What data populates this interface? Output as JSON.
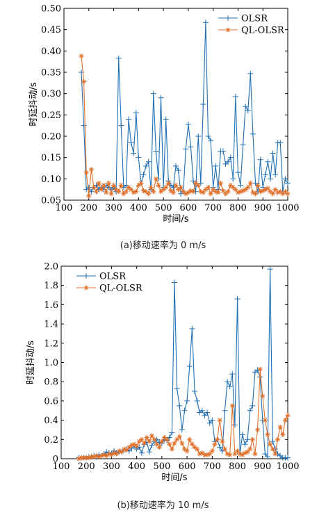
{
  "chart_data": [
    {
      "type": "line",
      "xlabel": "时间/s",
      "ylabel": "时延抖动/s",
      "xlim": [
        100,
        1000
      ],
      "ylim": [
        0.05,
        0.5
      ],
      "xticks": [
        100,
        200,
        300,
        400,
        500,
        600,
        700,
        800,
        900,
        1000
      ],
      "yticks": [
        0.05,
        0.1,
        0.15,
        0.2,
        0.25,
        0.3,
        0.35,
        0.4,
        0.45,
        0.5
      ],
      "xtick_labels": [
        "100",
        "200",
        "300",
        "400",
        "500",
        "600",
        "700",
        "800",
        "900",
        "1000"
      ],
      "ytick_labels": [
        "0.05",
        "0.10",
        "0.15",
        "0.20",
        "0.25",
        "0.30",
        "0.35",
        "0.40",
        "0.45",
        "0.50"
      ],
      "legend_position": "top-right",
      "series": [
        {
          "name": "OLSR",
          "color": "#1f6fb5",
          "marker": "plus",
          "x": [
            170,
            180,
            190,
            200,
            210,
            220,
            230,
            240,
            250,
            260,
            270,
            280,
            290,
            300,
            310,
            320,
            330,
            340,
            350,
            360,
            370,
            380,
            390,
            400,
            410,
            420,
            430,
            440,
            450,
            460,
            470,
            480,
            490,
            500,
            510,
            520,
            530,
            540,
            550,
            560,
            570,
            580,
            590,
            600,
            610,
            620,
            630,
            640,
            650,
            660,
            670,
            680,
            690,
            700,
            710,
            720,
            730,
            740,
            750,
            760,
            770,
            780,
            790,
            800,
            810,
            820,
            830,
            840,
            850,
            860,
            870,
            880,
            890,
            900,
            910,
            920,
            930,
            940,
            950,
            960,
            970,
            980,
            990,
            1000
          ],
          "y": [
            0.35,
            0.225,
            0.075,
            0.08,
            0.07,
            0.08,
            0.085,
            0.075,
            0.08,
            0.075,
            0.085,
            0.08,
            0.075,
            0.08,
            0.07,
            0.383,
            0.225,
            0.08,
            0.085,
            0.24,
            0.185,
            0.16,
            0.255,
            0.15,
            0.09,
            0.11,
            0.13,
            0.14,
            0.075,
            0.3,
            0.165,
            0.1,
            0.29,
            0.08,
            0.24,
            0.095,
            0.085,
            0.08,
            0.13,
            0.12,
            0.065,
            0.07,
            0.17,
            0.228,
            0.175,
            0.095,
            0.07,
            0.2,
            0.09,
            0.275,
            0.467,
            0.2,
            0.19,
            0.08,
            0.13,
            0.075,
            0.165,
            0.165,
            0.135,
            0.14,
            0.15,
            0.1,
            0.293,
            0.115,
            0.085,
            0.18,
            0.27,
            0.26,
            0.347,
            0.205,
            0.09,
            0.07,
            0.145,
            0.08,
            0.11,
            0.14,
            0.1,
            0.16,
            0.11,
            0.185,
            0.185,
            0.07,
            0.1,
            0.09
          ]
        },
        {
          "name": "QL-OLSR",
          "color": "#e0702a",
          "marker": "star",
          "x": [
            170,
            180,
            190,
            200,
            210,
            220,
            230,
            240,
            250,
            260,
            270,
            280,
            290,
            300,
            310,
            320,
            330,
            340,
            350,
            360,
            370,
            380,
            390,
            400,
            410,
            420,
            430,
            440,
            450,
            460,
            470,
            480,
            490,
            500,
            510,
            520,
            530,
            540,
            550,
            560,
            570,
            580,
            590,
            600,
            610,
            620,
            630,
            640,
            650,
            660,
            670,
            680,
            690,
            700,
            710,
            720,
            730,
            740,
            750,
            760,
            770,
            780,
            790,
            800,
            810,
            820,
            830,
            840,
            850,
            860,
            870,
            880,
            890,
            900,
            910,
            920,
            930,
            940,
            950,
            960,
            970,
            980,
            990,
            1000
          ],
          "y": [
            0.388,
            0.328,
            0.115,
            0.06,
            0.122,
            0.08,
            0.07,
            0.09,
            0.075,
            0.085,
            0.068,
            0.09,
            0.065,
            0.085,
            0.075,
            0.07,
            0.085,
            0.065,
            0.07,
            0.08,
            0.075,
            0.068,
            0.07,
            0.085,
            0.09,
            0.072,
            0.07,
            0.065,
            0.08,
            0.07,
            0.1,
            0.085,
            0.07,
            0.075,
            0.08,
            0.09,
            0.072,
            0.068,
            0.085,
            0.075,
            0.08,
            0.07,
            0.065,
            0.068,
            0.072,
            0.07,
            0.09,
            0.085,
            0.07,
            0.068,
            0.075,
            0.08,
            0.065,
            0.075,
            0.07,
            0.068,
            0.09,
            0.072,
            0.065,
            0.07,
            0.085,
            0.08,
            0.075,
            0.068,
            0.07,
            0.072,
            0.075,
            0.08,
            0.09,
            0.068,
            0.065,
            0.085,
            0.07,
            0.072,
            0.075,
            0.078,
            0.07,
            0.065,
            0.075,
            0.068,
            0.07,
            0.065,
            0.07,
            0.065
          ]
        }
      ]
    },
    {
      "type": "line",
      "xlabel": "时间/s",
      "ylabel": "时延抖动/s",
      "xlim": [
        100,
        1000
      ],
      "ylim": [
        0,
        2.0
      ],
      "xticks": [
        100,
        200,
        300,
        400,
        500,
        600,
        700,
        800,
        900,
        1000
      ],
      "yticks": [
        0,
        0.2,
        0.4,
        0.6,
        0.8,
        1.0,
        1.2,
        1.4,
        1.6,
        1.8,
        2.0
      ],
      "xtick_labels": [
        "100",
        "200",
        "300",
        "400",
        "500",
        "600",
        "700",
        "800",
        "900",
        "1000"
      ],
      "ytick_labels": [
        "0",
        "0.2",
        "0.4",
        "0.6",
        "0.8",
        "1.0",
        "1.2",
        "1.4",
        "1.6",
        "1.8",
        "2.0"
      ],
      "legend_position": "top-left",
      "series": [
        {
          "name": "OLSR",
          "color": "#1f6fb5",
          "marker": "plus",
          "x": [
            170,
            180,
            190,
            200,
            210,
            220,
            230,
            240,
            250,
            260,
            270,
            280,
            290,
            300,
            310,
            320,
            330,
            340,
            350,
            360,
            370,
            380,
            390,
            400,
            410,
            420,
            430,
            440,
            450,
            460,
            470,
            480,
            490,
            500,
            510,
            520,
            530,
            540,
            550,
            560,
            570,
            580,
            590,
            600,
            610,
            620,
            630,
            640,
            650,
            660,
            670,
            680,
            690,
            700,
            710,
            720,
            730,
            740,
            750,
            760,
            770,
            780,
            790,
            800,
            810,
            820,
            830,
            840,
            850,
            860,
            870,
            880,
            890,
            900,
            910,
            920,
            930,
            940,
            950,
            960,
            970,
            980,
            990,
            1000
          ],
          "y": [
            0.01,
            0.01,
            0.01,
            0.01,
            0.02,
            0.02,
            0.03,
            0.02,
            0.04,
            0.03,
            0.05,
            0.07,
            0.06,
            0.05,
            0.08,
            0.06,
            0.07,
            0.07,
            0.09,
            0.1,
            0.08,
            0.11,
            0.13,
            0.1,
            0.12,
            0.06,
            0.15,
            0.17,
            0.07,
            0.14,
            0.18,
            0.2,
            0.17,
            0.16,
            0.2,
            0.19,
            0.22,
            0.27,
            1.83,
            0.73,
            0.55,
            0.3,
            0.5,
            0.6,
            0.96,
            1.35,
            0.7,
            0.6,
            0.48,
            0.5,
            0.45,
            0.48,
            0.37,
            0.4,
            0.18,
            0.2,
            0.12,
            0.08,
            0.5,
            0.8,
            0.75,
            0.88,
            0.35,
            1.66,
            0.05,
            0.25,
            0.15,
            0.2,
            0.5,
            0.55,
            0.9,
            0.92,
            0.85,
            0.4,
            0.05,
            0.02,
            1.97,
            0.18,
            0.1,
            0.05,
            0.03,
            0.01,
            0.01,
            0.01
          ]
        },
        {
          "name": "QL-OLSR",
          "color": "#e0702a",
          "marker": "star",
          "x": [
            170,
            180,
            190,
            200,
            210,
            220,
            230,
            240,
            250,
            260,
            270,
            280,
            290,
            300,
            310,
            320,
            330,
            340,
            350,
            360,
            370,
            380,
            390,
            400,
            410,
            420,
            430,
            440,
            450,
            460,
            470,
            480,
            490,
            500,
            510,
            520,
            530,
            540,
            550,
            560,
            570,
            580,
            590,
            600,
            610,
            620,
            630,
            640,
            650,
            660,
            670,
            680,
            690,
            700,
            710,
            720,
            730,
            740,
            750,
            760,
            770,
            780,
            790,
            800,
            810,
            820,
            830,
            840,
            850,
            860,
            870,
            880,
            890,
            900,
            910,
            920,
            930,
            940,
            950,
            960,
            970,
            980,
            990,
            1000
          ],
          "y": [
            0.0,
            0.01,
            0.01,
            0.01,
            0.01,
            0.02,
            0.02,
            0.03,
            0.02,
            0.03,
            0.04,
            0.03,
            0.05,
            0.04,
            0.06,
            0.05,
            0.08,
            0.07,
            0.1,
            0.09,
            0.12,
            0.14,
            0.15,
            0.13,
            0.18,
            0.2,
            0.16,
            0.22,
            0.18,
            0.24,
            0.2,
            0.15,
            0.12,
            0.18,
            0.22,
            0.2,
            0.15,
            0.1,
            0.16,
            0.2,
            0.23,
            0.16,
            0.1,
            0.08,
            0.2,
            0.15,
            0.12,
            0.1,
            0.05,
            0.06,
            0.04,
            0.04,
            0.05,
            0.08,
            0.15,
            0.2,
            0.4,
            0.18,
            0.1,
            0.05,
            0.04,
            0.55,
            0.05,
            0.08,
            0.05,
            0.04,
            0.06,
            0.07,
            0.1,
            0.2,
            0.05,
            0.3,
            0.93,
            0.65,
            0.4,
            0.25,
            0.15,
            0.1,
            0.05,
            0.2,
            0.33,
            0.25,
            0.4,
            0.45
          ]
        }
      ]
    }
  ],
  "captions": {
    "a": "(a)移动速率为 0 m/s",
    "b": "(b)移动速率为 10 m/s"
  }
}
